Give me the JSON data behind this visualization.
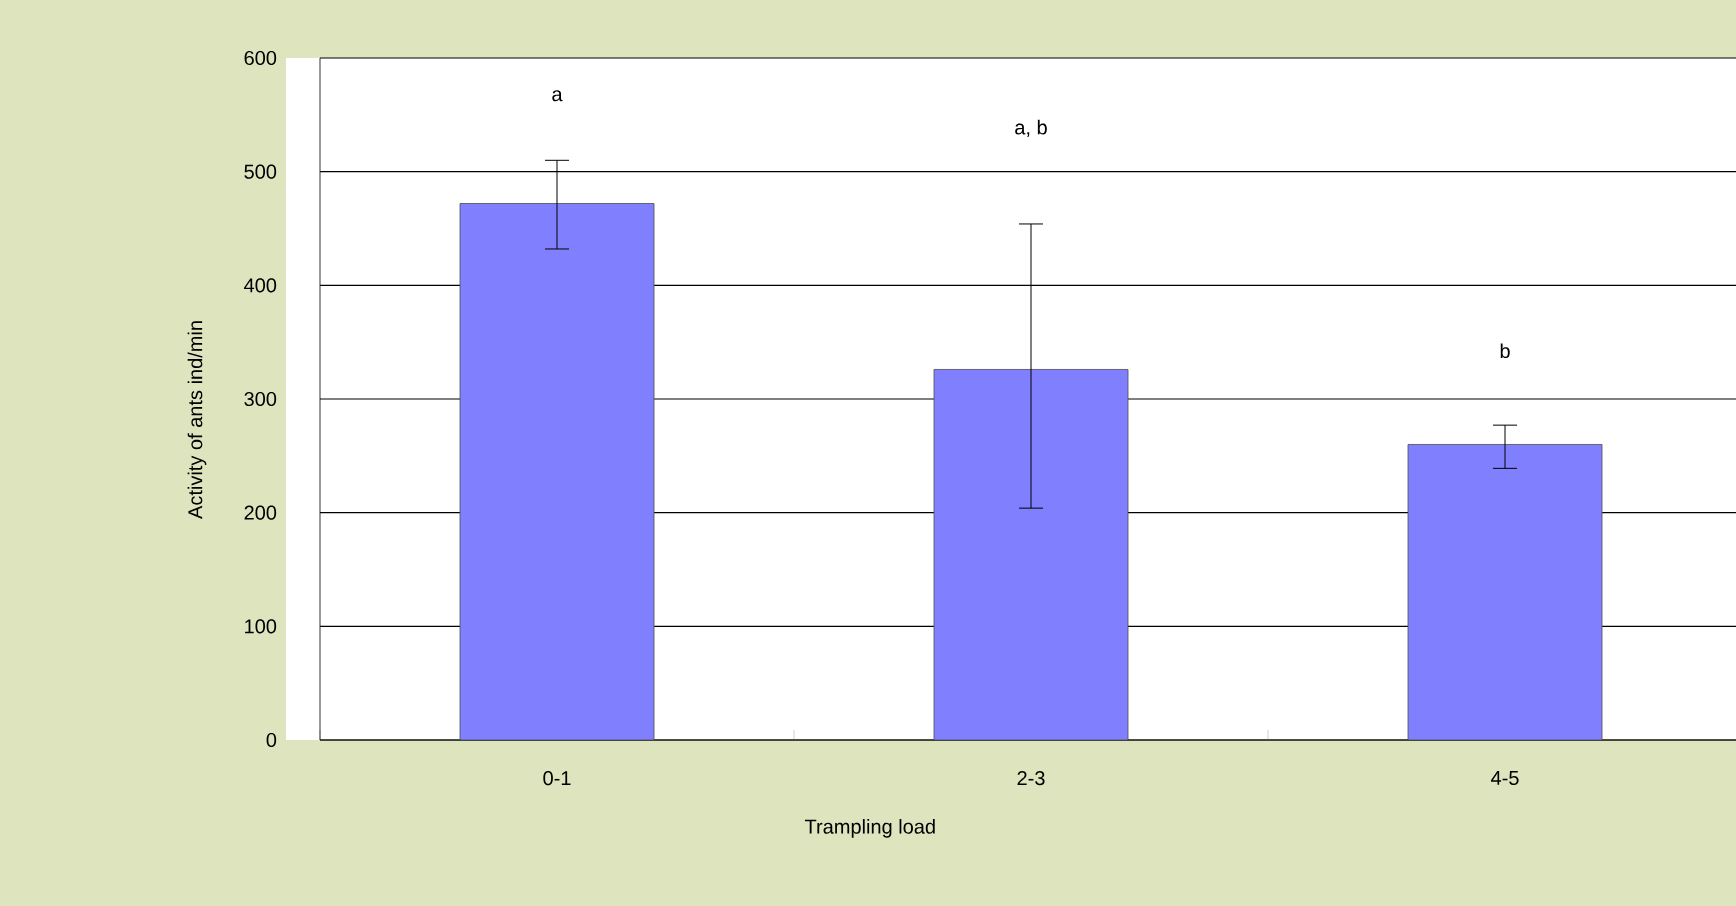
{
  "chart_data": {
    "type": "bar",
    "xlabel": "Trampling load",
    "ylabel": "Activity of ants ind/min",
    "categories": [
      "0-1",
      "2-3",
      "4-5"
    ],
    "values": [
      472,
      326,
      260
    ],
    "errors": [
      [
        432,
        510
      ],
      [
        204,
        454
      ],
      [
        239,
        277
      ]
    ],
    "color": "#8080ff",
    "ylim": [
      0,
      600
    ],
    "yticks": [
      0,
      100,
      200,
      300,
      400,
      500,
      600
    ],
    "grid": "y",
    "annotations": [
      "a",
      "a, b",
      "b"
    ]
  }
}
